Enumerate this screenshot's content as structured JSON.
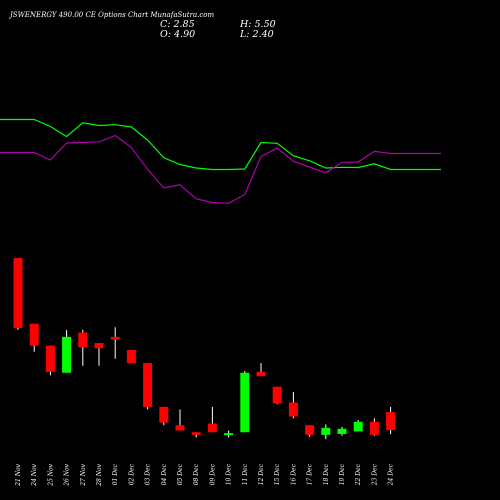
{
  "header": {
    "title": "JSWENERGY 490.00  CE Options  Chart MunafaSutra.com",
    "c": "C: 2.85",
    "h": "H: 5.50",
    "o": "O: 4.90",
    "l": "L: 2.40"
  },
  "colors": {
    "background": "#000000",
    "up": "#00ff00",
    "down": "#ff0000",
    "line_green": "#00ff00",
    "line_purple": "#b000b0",
    "wick": "#ffffff",
    "text": "#ffffff"
  },
  "chart_data": {
    "type": "candlestick",
    "categories": [
      "21 Nov",
      "24 Nov",
      "25 Nov",
      "26 Nov",
      "27 Nov",
      "28 Nov",
      "01 Dec",
      "02 Dec",
      "03 Dec",
      "04 Dec",
      "05 Dec",
      "08 Dec",
      "09 Dec",
      "10 Dec",
      "11 Dec",
      "12 Dec",
      "15 Dec",
      "16 Dec",
      "17 Dec",
      "18 Dec",
      "19 Dec",
      "22 Dec",
      "23 Dec",
      "24 Dec"
    ],
    "candles": [
      {
        "o": 22.5,
        "h": 22.5,
        "l": 14.3,
        "c": 14.5
      },
      {
        "o": 15.0,
        "h": 15.0,
        "l": 11.8,
        "c": 12.5
      },
      {
        "o": 12.5,
        "h": 12.5,
        "l": 9.1,
        "c": 9.5
      },
      {
        "o": 9.4,
        "h": 14.3,
        "l": 9.4,
        "c": 13.5
      },
      {
        "o": 14.0,
        "h": 14.3,
        "l": 10.2,
        "c": 12.3
      },
      {
        "o": 12.8,
        "h": 12.8,
        "l": 10.2,
        "c": 12.2
      },
      {
        "o": 13.5,
        "h": 14.6,
        "l": 11.0,
        "c": 13.2
      },
      {
        "o": 12.0,
        "h": 12.0,
        "l": 10.5,
        "c": 10.5
      },
      {
        "o": 10.5,
        "h": 10.5,
        "l": 5.2,
        "c": 5.5
      },
      {
        "o": 5.5,
        "h": 5.5,
        "l": 3.4,
        "c": 3.7
      },
      {
        "o": 3.4,
        "h": 5.2,
        "l": 2.8,
        "c": 2.8
      },
      {
        "o": 2.6,
        "h": 2.6,
        "l": 2.0,
        "c": 2.3
      },
      {
        "o": 3.6,
        "h": 5.5,
        "l": 2.6,
        "c": 2.6
      },
      {
        "o": 2.5,
        "h": 2.8,
        "l": 2.0,
        "c": 2.5
      },
      {
        "o": 2.6,
        "h": 9.6,
        "l": 2.6,
        "c": 9.4
      },
      {
        "o": 9.5,
        "h": 10.5,
        "l": 9.0,
        "c": 9.0
      },
      {
        "o": 7.8,
        "h": 7.8,
        "l": 5.8,
        "c": 5.9
      },
      {
        "o": 6.0,
        "h": 7.2,
        "l": 4.2,
        "c": 4.4
      },
      {
        "o": 3.4,
        "h": 3.4,
        "l": 2.1,
        "c": 2.3
      },
      {
        "o": 2.3,
        "h": 3.5,
        "l": 1.8,
        "c": 3.1
      },
      {
        "o": 2.4,
        "h": 3.2,
        "l": 2.2,
        "c": 3.0
      },
      {
        "o": 2.7,
        "h": 4.0,
        "l": 2.7,
        "c": 3.8
      },
      {
        "o": 3.8,
        "h": 4.2,
        "l": 2.2,
        "c": 2.3
      },
      {
        "o": 4.9,
        "h": 5.5,
        "l": 2.4,
        "c": 2.85
      }
    ],
    "series": [
      {
        "values": [
          52.2,
          52.2,
          49.4,
          45.4,
          50.9,
          49.8,
          50.1,
          49.2,
          44.0,
          36.9,
          34.2,
          32.8,
          32.2,
          32.2,
          32.4,
          43.0,
          42.7,
          37.7,
          35.7,
          32.8,
          33.1,
          33.0,
          34.5,
          32.2
        ]
      },
      {
        "values": [
          39.0,
          39.0,
          36.0,
          42.8,
          43.0,
          43.3,
          45.8,
          41.0,
          32.3,
          24.8,
          26.1,
          20.5,
          19.0,
          18.7,
          22.2,
          37.4,
          40.8,
          35.5,
          33.2,
          30.9,
          35.1,
          35.2,
          39.5,
          38.6
        ]
      }
    ],
    "ylim_candles": [
      0,
      24
    ],
    "ylim_lines": [
      0,
      60
    ]
  }
}
